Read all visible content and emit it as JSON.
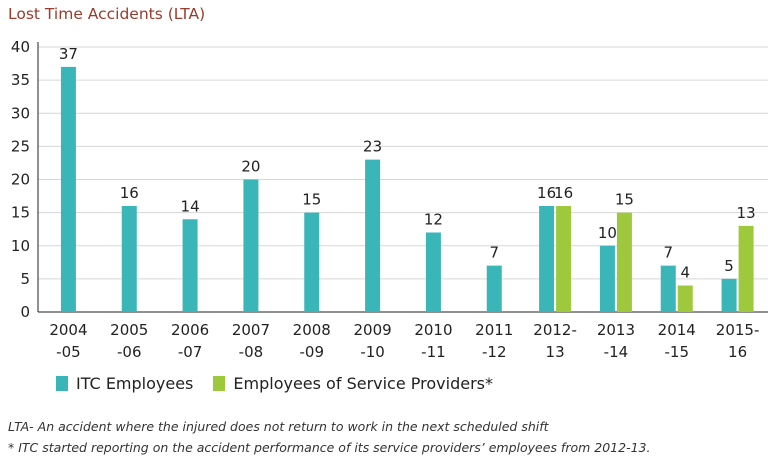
{
  "chart_data": {
    "type": "bar",
    "title": "Lost Time Accidents (LTA)",
    "categories": [
      [
        "2004",
        "-05"
      ],
      [
        "2005",
        "-06"
      ],
      [
        "2006",
        "-07"
      ],
      [
        "2007",
        "-08"
      ],
      [
        "2008",
        "-09"
      ],
      [
        "2009",
        "-10"
      ],
      [
        "2010",
        "-11"
      ],
      [
        "2011",
        "-12"
      ],
      [
        "2012-",
        "13"
      ],
      [
        "2013",
        "-14"
      ],
      [
        "2014",
        "-15"
      ],
      [
        "2015-",
        "16"
      ]
    ],
    "series": [
      {
        "name": "ITC Employees",
        "color": "#3ab5b8",
        "values": [
          37,
          16,
          14,
          20,
          15,
          23,
          12,
          7,
          16,
          10,
          7,
          5
        ]
      },
      {
        "name": "Employees of Service Providers*",
        "color": "#9ec93c",
        "values": [
          null,
          null,
          null,
          null,
          null,
          null,
          null,
          null,
          16,
          15,
          4,
          13
        ]
      }
    ],
    "ylim": [
      0,
      40
    ],
    "yticks": [
      0,
      5,
      10,
      15,
      20,
      25,
      30,
      35,
      40
    ],
    "grid": true,
    "legend": "bottom-left"
  },
  "footnotes": [
    "LTA- An accident where the injured does not return to work in the next scheduled shift",
    "* ITC started reporting on the accident performance of its service providers’ employees from 2012-13."
  ]
}
